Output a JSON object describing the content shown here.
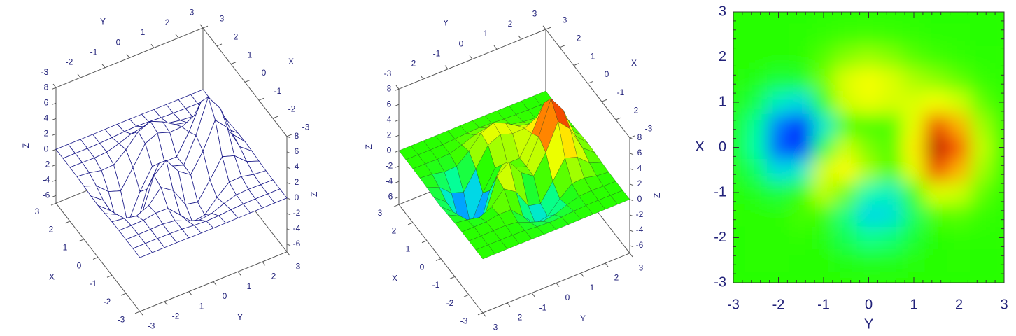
{
  "chart_data": [
    {
      "type": "surface",
      "xlabel": "X",
      "ylabel": "Y",
      "zlabel": "Z",
      "x": [
        -3,
        -2.5,
        -2,
        -1.5,
        -1,
        -0.5,
        0,
        0.5,
        1,
        1.5,
        2,
        2.5,
        3
      ],
      "y": [
        -3,
        -2.5,
        -2,
        -1.5,
        -1,
        -0.5,
        0,
        0.5,
        1,
        1.5,
        2,
        2.5,
        3
      ],
      "z": [
        [
          0,
          0,
          0,
          0,
          -0.01,
          -0.03,
          -0.03,
          -0.03,
          -0.01,
          0,
          0,
          0,
          0
        ],
        [
          0,
          0.01,
          0.01,
          0,
          -0.05,
          -0.2,
          -0.3,
          -0.25,
          -0.11,
          -0.02,
          0.01,
          0,
          0
        ],
        [
          0,
          0.01,
          0.05,
          0.08,
          -0.13,
          -0.8,
          -1.33,
          -1.12,
          -0.48,
          -0.01,
          0.08,
          0.03,
          0.01
        ],
        [
          0.01,
          0.01,
          0.04,
          0.33,
          0.3,
          -1.21,
          -2.77,
          -2.49,
          -0.87,
          0.48,
          0.56,
          0.19,
          0.03
        ],
        [
          -0.03,
          -0.24,
          -0.58,
          0.14,
          1.85,
          0.8,
          -1.65,
          -2,
          0.23,
          2.61,
          2.09,
          0.69,
          0.11
        ],
        [
          -0.13,
          -0.92,
          -2.65,
          -2.19,
          2.22,
          3.55,
          1.48,
          0.39,
          2.79,
          6.19,
          4.57,
          1.46,
          0.23
        ],
        [
          -0.25,
          -1.56,
          -4.76,
          -5.68,
          -0.73,
          2,
          0.98,
          0.46,
          3.69,
          7.99,
          5.86,
          1.88,
          0.3
        ],
        [
          -0.22,
          -1.4,
          -4.36,
          -5.76,
          -2.22,
          0.39,
          0.37,
          0.38,
          2.94,
          6.26,
          4.58,
          1.47,
          0.23
        ],
        [
          -0.11,
          -0.69,
          -2.09,
          -2.64,
          -0.27,
          2.2,
          2.93,
          2.38,
          2.44,
          3.26,
          2.2,
          0.7,
          0.11
        ],
        [
          -0.03,
          -0.18,
          -0.53,
          -0.44,
          0.89,
          2.56,
          3.27,
          2.56,
          1.58,
          1.18,
          0.68,
          0.2,
          0.03
        ],
        [
          -0.01,
          -0.02,
          -0.06,
          0.04,
          0.5,
          1.12,
          1.41,
          1.1,
          0.58,
          0.29,
          0.13,
          0.04,
          0.01
        ],
        [
          0,
          0,
          -0.01,
          0.03,
          0.11,
          0.24,
          0.3,
          0.23,
          0.11,
          0.05,
          0.02,
          0,
          0
        ],
        [
          0,
          0,
          0,
          0,
          0.01,
          0.03,
          0.03,
          0.03,
          0.01,
          0,
          0,
          0,
          0
        ]
      ],
      "xlim": [
        -3,
        3
      ],
      "ylim": [
        -3,
        3
      ],
      "zlim": [
        -7,
        8
      ],
      "xticks": [
        -3,
        -2,
        -1,
        0,
        1,
        2,
        3
      ],
      "yticks": [
        -3,
        -2,
        -1,
        0,
        1,
        2,
        3
      ],
      "zticks": [
        -6,
        -4,
        -2,
        0,
        2,
        4,
        6,
        8
      ],
      "facecolor": "#ffffff",
      "edgecolor": "#1c1c8a"
    },
    {
      "type": "surface",
      "xlabel": "X",
      "ylabel": "Y",
      "zlabel": "Z",
      "x": [
        -3,
        -2.5,
        -2,
        -1.5,
        -1,
        -0.5,
        0,
        0.5,
        1,
        1.5,
        2,
        2.5,
        3
      ],
      "y": [
        -3,
        -2.5,
        -2,
        -1.5,
        -1,
        -0.5,
        0,
        0.5,
        1,
        1.5,
        2,
        2.5,
        3
      ],
      "z": [
        [
          0,
          0,
          0,
          0,
          -0.01,
          -0.03,
          -0.03,
          -0.03,
          -0.01,
          0,
          0,
          0,
          0
        ],
        [
          0,
          0.01,
          0.01,
          0,
          -0.05,
          -0.2,
          -0.3,
          -0.25,
          -0.11,
          -0.02,
          0.01,
          0,
          0
        ],
        [
          0,
          0.01,
          0.05,
          0.08,
          -0.13,
          -0.8,
          -1.33,
          -1.12,
          -0.48,
          -0.01,
          0.08,
          0.03,
          0.01
        ],
        [
          0.01,
          0.01,
          0.04,
          0.33,
          0.3,
          -1.21,
          -2.77,
          -2.49,
          -0.87,
          0.48,
          0.56,
          0.19,
          0.03
        ],
        [
          -0.03,
          -0.24,
          -0.58,
          0.14,
          1.85,
          0.8,
          -1.65,
          -2,
          0.23,
          2.61,
          2.09,
          0.69,
          0.11
        ],
        [
          -0.13,
          -0.92,
          -2.65,
          -2.19,
          2.22,
          3.55,
          1.48,
          0.39,
          2.79,
          6.19,
          4.57,
          1.46,
          0.23
        ],
        [
          -0.25,
          -1.56,
          -4.76,
          -5.68,
          -0.73,
          2,
          0.98,
          0.46,
          3.69,
          7.99,
          5.86,
          1.88,
          0.3
        ],
        [
          -0.22,
          -1.4,
          -4.36,
          -5.76,
          -2.22,
          0.39,
          0.37,
          0.38,
          2.94,
          6.26,
          4.58,
          1.47,
          0.23
        ],
        [
          -0.11,
          -0.69,
          -2.09,
          -2.64,
          -0.27,
          2.2,
          2.93,
          2.38,
          2.44,
          3.26,
          2.2,
          0.7,
          0.11
        ],
        [
          -0.03,
          -0.18,
          -0.53,
          -0.44,
          0.89,
          2.56,
          3.27,
          2.56,
          1.58,
          1.18,
          0.68,
          0.2,
          0.03
        ],
        [
          -0.01,
          -0.02,
          -0.06,
          0.04,
          0.5,
          1.12,
          1.41,
          1.1,
          0.58,
          0.29,
          0.13,
          0.04,
          0.01
        ],
        [
          0,
          0,
          -0.01,
          0.03,
          0.11,
          0.24,
          0.3,
          0.23,
          0.11,
          0.05,
          0.02,
          0,
          0
        ],
        [
          0,
          0,
          0,
          0,
          0.01,
          0.03,
          0.03,
          0.03,
          0.01,
          0,
          0,
          0,
          0
        ]
      ],
      "xlim": [
        -3,
        3
      ],
      "ylim": [
        -3,
        3
      ],
      "zlim": [
        -7,
        8
      ],
      "xticks": [
        -3,
        -2,
        -1,
        0,
        1,
        2,
        3
      ],
      "yticks": [
        -3,
        -2,
        -1,
        0,
        1,
        2,
        3
      ],
      "zticks": [
        -6,
        -4,
        -2,
        0,
        2,
        4,
        6,
        8
      ],
      "colormap": "jet",
      "edgecolor": "#1c3a1c"
    },
    {
      "type": "contour",
      "xlabel": "Y",
      "ylabel": "X",
      "x": [
        -3,
        -2.5,
        -2,
        -1.5,
        -1,
        -0.5,
        0,
        0.5,
        1,
        1.5,
        2,
        2.5,
        3
      ],
      "y": [
        -3,
        -2.5,
        -2,
        -1.5,
        -1,
        -0.5,
        0,
        0.5,
        1,
        1.5,
        2,
        2.5,
        3
      ],
      "z": [
        [
          0,
          0,
          0,
          0,
          -0.01,
          -0.03,
          -0.03,
          -0.03,
          -0.01,
          0,
          0,
          0,
          0
        ],
        [
          0,
          0.01,
          0.01,
          0,
          -0.05,
          -0.2,
          -0.3,
          -0.25,
          -0.11,
          -0.02,
          0.01,
          0,
          0
        ],
        [
          0,
          0.01,
          0.05,
          0.08,
          -0.13,
          -0.8,
          -1.33,
          -1.12,
          -0.48,
          -0.01,
          0.08,
          0.03,
          0.01
        ],
        [
          0.01,
          0.01,
          0.04,
          0.33,
          0.3,
          -1.21,
          -2.77,
          -2.49,
          -0.87,
          0.48,
          0.56,
          0.19,
          0.03
        ],
        [
          -0.03,
          -0.24,
          -0.58,
          0.14,
          1.85,
          0.8,
          -1.65,
          -2,
          0.23,
          2.61,
          2.09,
          0.69,
          0.11
        ],
        [
          -0.13,
          -0.92,
          -2.65,
          -2.19,
          2.22,
          3.55,
          1.48,
          0.39,
          2.79,
          6.19,
          4.57,
          1.46,
          0.23
        ],
        [
          -0.25,
          -1.56,
          -4.76,
          -5.68,
          -0.73,
          2,
          0.98,
          0.46,
          3.69,
          7.99,
          5.86,
          1.88,
          0.3
        ],
        [
          -0.22,
          -1.4,
          -4.36,
          -5.76,
          -2.22,
          0.39,
          0.37,
          0.38,
          2.94,
          6.26,
          4.58,
          1.47,
          0.23
        ],
        [
          -0.11,
          -0.69,
          -2.09,
          -2.64,
          -0.27,
          2.2,
          2.93,
          2.38,
          2.44,
          3.26,
          2.2,
          0.7,
          0.11
        ],
        [
          -0.03,
          -0.18,
          -0.53,
          -0.44,
          0.89,
          2.56,
          3.27,
          2.56,
          1.58,
          1.18,
          0.68,
          0.2,
          0.03
        ],
        [
          -0.01,
          -0.02,
          -0.06,
          0.04,
          0.5,
          1.12,
          1.41,
          1.1,
          0.58,
          0.29,
          0.13,
          0.04,
          0.01
        ],
        [
          0,
          0,
          -0.01,
          0.03,
          0.11,
          0.24,
          0.3,
          0.23,
          0.11,
          0.05,
          0.02,
          0,
          0
        ],
        [
          0,
          0,
          0,
          0,
          0.01,
          0.03,
          0.03,
          0.03,
          0.01,
          0,
          0,
          0,
          0
        ]
      ],
      "xlim": [
        -3,
        3
      ],
      "ylim": [
        -3,
        3
      ],
      "xticks": [
        -3,
        -2,
        -1,
        0,
        1,
        2,
        3
      ],
      "yticks": [
        -3,
        -2,
        -1,
        0,
        1,
        2,
        3
      ],
      "colormap": "jet"
    }
  ]
}
